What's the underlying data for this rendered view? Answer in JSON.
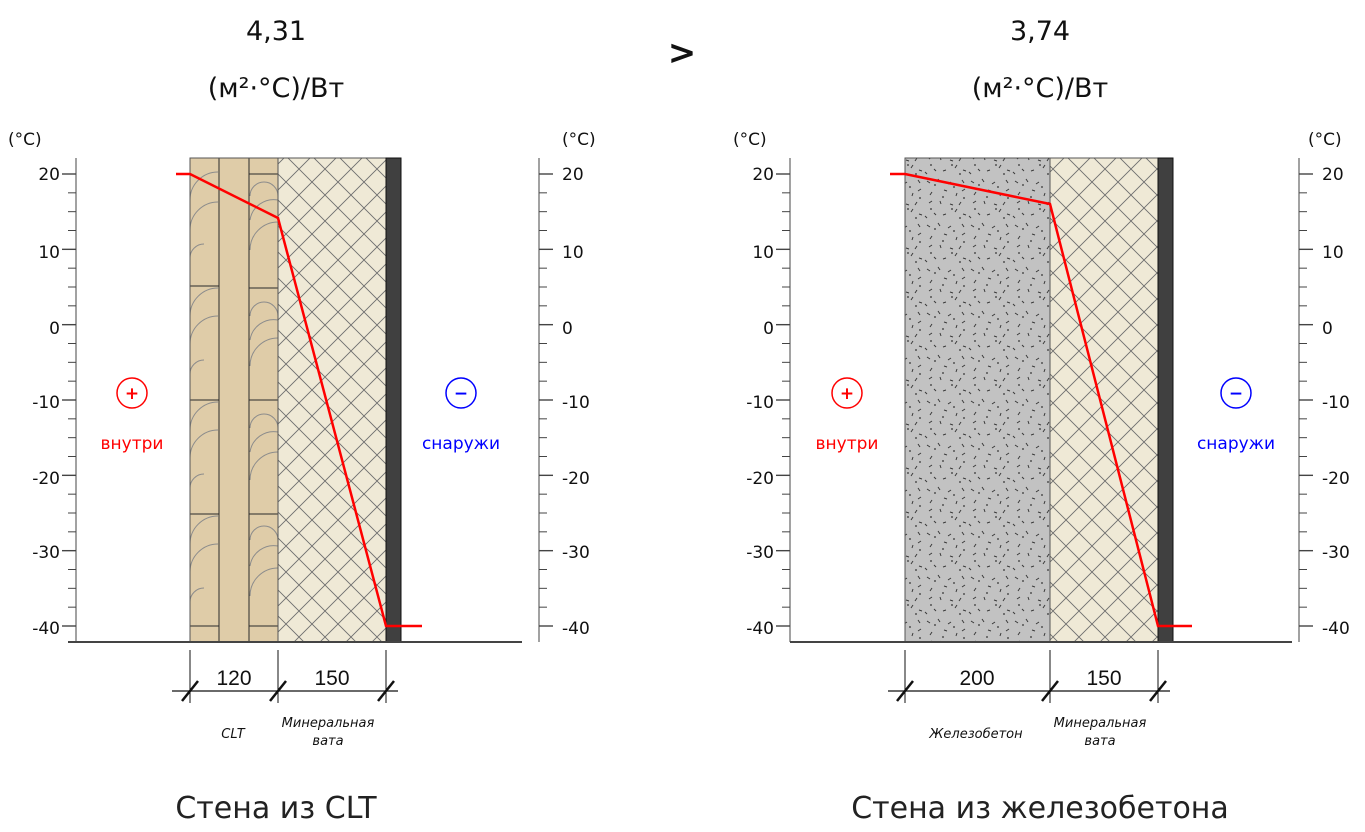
{
  "comparison_sign": ">",
  "colors": {
    "temperature_line": "#ff0000",
    "inside": "#ff0000",
    "outside": "#0000ff",
    "wood": "#dfcca8",
    "wool": "#efe9d6",
    "concrete": "#c2c2c2",
    "cladding": "#404040"
  },
  "panels": [
    {
      "resistance_value": "4,31",
      "resistance_unit": "(м²·°C)/Вт",
      "axis_unit_left": "(°C)",
      "axis_unit_right": "(°C)",
      "ticks": [
        "20",
        "10",
        "0",
        "-10",
        "-20",
        "-30",
        "-40"
      ],
      "inside_sign": "+",
      "inside_label": "внутри",
      "outside_sign": "−",
      "outside_label": "снаружи",
      "layers": [
        {
          "thickness": "120",
          "material": "CLT",
          "material_line2": ""
        },
        {
          "thickness": "150",
          "material": "Минеральная",
          "material_line2": "вата"
        }
      ],
      "caption": "Стена из CLT"
    },
    {
      "resistance_value": "3,74",
      "resistance_unit": "(м²·°C)/Вт",
      "axis_unit_left": "(°C)",
      "axis_unit_right": "(°C)",
      "ticks": [
        "20",
        "10",
        "0",
        "-10",
        "-20",
        "-30",
        "-40"
      ],
      "inside_sign": "+",
      "inside_label": "внутри",
      "outside_sign": "−",
      "outside_label": "снаружи",
      "layers": [
        {
          "thickness": "200",
          "material": "Железобетон",
          "material_line2": ""
        },
        {
          "thickness": "150",
          "material": "Минеральная",
          "material_line2": "вата"
        }
      ],
      "caption": "Стена из железобетона"
    }
  ]
}
